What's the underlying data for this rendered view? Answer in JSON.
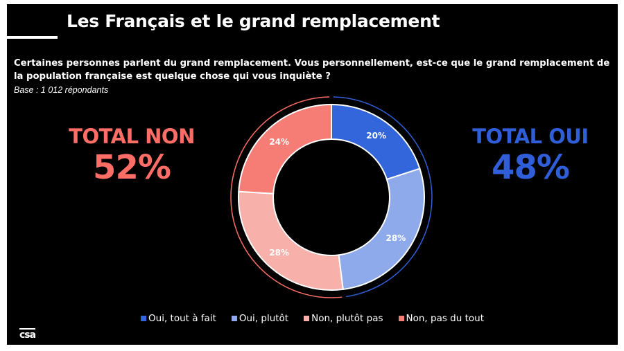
{
  "title": "Les Français et le grand remplacement",
  "question": "Certaines personnes parlent du grand remplacement. Vous personnellement, est-ce que le grand remplacement de la population française est quelque chose qui vous inquiète ?",
  "base": "Base : 1 012 répondants",
  "totals": {
    "non": {
      "label": "TOTAL NON",
      "value": "52%",
      "color": "#ff6e66"
    },
    "oui": {
      "label": "TOTAL OUI",
      "value": "48%",
      "color": "#2f5ed8"
    }
  },
  "logo": "csa",
  "chart_data": {
    "type": "pie",
    "title": "",
    "categories": [
      "Oui, tout à fait",
      "Oui, plutôt",
      "Non, plutôt pas",
      "Non, pas du tout"
    ],
    "values": [
      20,
      28,
      28,
      24
    ],
    "labels": [
      "20%",
      "28%",
      "28%",
      "24%"
    ],
    "colors": [
      "#3466db",
      "#8eaaeb",
      "#f8b0aa",
      "#f57d75"
    ],
    "donut": true,
    "legend_position": "bottom"
  }
}
